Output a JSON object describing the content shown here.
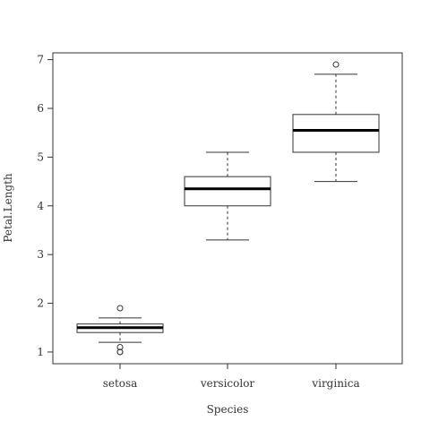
{
  "chart_data": {
    "type": "boxplot",
    "title": "",
    "xlabel": "Species",
    "ylabel": "Petal.Length",
    "ylim": [
      0.76,
      7.14
    ],
    "yticks": [
      1,
      2,
      3,
      4,
      5,
      6,
      7
    ],
    "categories": [
      "setosa",
      "versicolor",
      "virginica"
    ],
    "boxes": [
      {
        "category": "setosa",
        "whisker_low": 1.2,
        "q1": 1.4,
        "median": 1.5,
        "q3": 1.575,
        "whisker_high": 1.7,
        "outliers": [
          1.0,
          1.1,
          1.0,
          1.9
        ]
      },
      {
        "category": "versicolor",
        "whisker_low": 3.3,
        "q1": 4.0,
        "median": 4.35,
        "q3": 4.6,
        "whisker_high": 5.1,
        "outliers": []
      },
      {
        "category": "virginica",
        "whisker_low": 4.5,
        "q1": 5.1,
        "median": 5.55,
        "q3": 5.875,
        "whisker_high": 6.7,
        "outliers": [
          6.9
        ]
      }
    ],
    "grid": false,
    "legend": "none"
  }
}
